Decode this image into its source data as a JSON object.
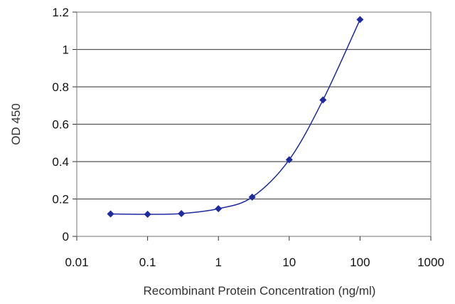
{
  "chart_data": {
    "type": "scatter",
    "title": "",
    "xlabel": "Recombinant Protein Concentration (ng/ml)",
    "ylabel": "OD 450",
    "x_scale": "log",
    "xlim": [
      0.01,
      1000
    ],
    "ylim": [
      0,
      1.2
    ],
    "x_ticks": [
      0.01,
      0.1,
      1,
      10,
      100,
      1000
    ],
    "x_tick_labels": [
      "0.01",
      "0.1",
      "1",
      "10",
      "100",
      "1000"
    ],
    "y_ticks": [
      0,
      0.2,
      0.4,
      0.6,
      0.8,
      1,
      1.2
    ],
    "y_tick_labels": [
      "0",
      "0.2",
      "0.4",
      "0.6",
      "0.8",
      "1",
      "1.2"
    ],
    "grid": "horizontal",
    "legend": "none",
    "series": [
      {
        "x": [
          0.03,
          0.1,
          0.3,
          1,
          3,
          10,
          30,
          100
        ],
        "y": [
          0.12,
          0.118,
          0.122,
          0.148,
          0.21,
          0.41,
          0.73,
          1.16
        ],
        "color": "#1f2b9c",
        "marker": "diamond",
        "line": "smooth"
      }
    ]
  }
}
